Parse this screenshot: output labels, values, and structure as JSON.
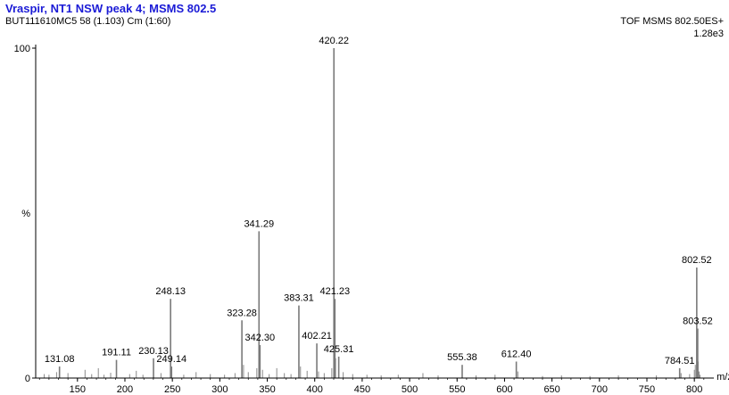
{
  "header": {
    "title": "Vraspir, NT1 NSW peak 4; MSMS 802.5",
    "subtitle": "BUT111610MC5 58 (1.103) Cm (1:60)",
    "instrument": "TOF MSMS 802.50ES+",
    "intensity": "1.28e3"
  },
  "chart_data": {
    "type": "bar",
    "xlabel": "m/z",
    "ylabel": "%",
    "xlim": [
      106,
      813
    ],
    "ylim": [
      0,
      100
    ],
    "y_ticks": [
      {
        "value": 0,
        "label": "0"
      },
      {
        "value": 100,
        "label": "100"
      }
    ],
    "x_ticks": [
      150,
      200,
      250,
      300,
      350,
      400,
      450,
      500,
      550,
      600,
      650,
      700,
      750,
      800
    ],
    "peaks": [
      {
        "mz": 131.08,
        "intensity": 3.5,
        "label": "131.08"
      },
      {
        "mz": 191.11,
        "intensity": 5.5,
        "label": "191.11"
      },
      {
        "mz": 230.13,
        "intensity": 6,
        "label": "230.13"
      },
      {
        "mz": 248.13,
        "intensity": 24,
        "label": "248.13"
      },
      {
        "mz": 249.14,
        "intensity": 3.5,
        "label": "249.14"
      },
      {
        "mz": 323.28,
        "intensity": 17.5,
        "label": "323.28"
      },
      {
        "mz": 341.29,
        "intensity": 44.5,
        "label": "341.29"
      },
      {
        "mz": 342.3,
        "intensity": 10,
        "label": "342.30"
      },
      {
        "mz": 383.31,
        "intensity": 22,
        "label": "383.31"
      },
      {
        "mz": 402.21,
        "intensity": 10.5,
        "label": "402.21"
      },
      {
        "mz": 420.22,
        "intensity": 100,
        "label": "420.22"
      },
      {
        "mz": 421.23,
        "intensity": 24,
        "label": "421.23"
      },
      {
        "mz": 425.31,
        "intensity": 6.5,
        "label": "425.31"
      },
      {
        "mz": 555.38,
        "intensity": 4,
        "label": "555.38"
      },
      {
        "mz": 612.4,
        "intensity": 5,
        "label": "612.40"
      },
      {
        "mz": 784.51,
        "intensity": 3,
        "label": "784.51"
      },
      {
        "mz": 802.52,
        "intensity": 33.5,
        "label": "802.52"
      },
      {
        "mz": 803.52,
        "intensity": 15,
        "label": "803.52"
      }
    ],
    "minor_peaks": [
      {
        "mz": 115,
        "intensity": 1.2
      },
      {
        "mz": 120,
        "intensity": 1.0
      },
      {
        "mz": 128,
        "intensity": 1.8
      },
      {
        "mz": 140,
        "intensity": 1.5
      },
      {
        "mz": 158,
        "intensity": 2.5
      },
      {
        "mz": 165,
        "intensity": 1.2
      },
      {
        "mz": 172,
        "intensity": 3.0
      },
      {
        "mz": 178,
        "intensity": 1.0
      },
      {
        "mz": 185,
        "intensity": 1.6
      },
      {
        "mz": 205,
        "intensity": 1.2
      },
      {
        "mz": 212,
        "intensity": 2.2
      },
      {
        "mz": 219,
        "intensity": 1.0
      },
      {
        "mz": 238,
        "intensity": 1.5
      },
      {
        "mz": 262,
        "intensity": 1.0
      },
      {
        "mz": 275,
        "intensity": 1.8
      },
      {
        "mz": 290,
        "intensity": 1.2
      },
      {
        "mz": 305,
        "intensity": 1.0
      },
      {
        "mz": 316,
        "intensity": 1.5
      },
      {
        "mz": 325,
        "intensity": 4.0
      },
      {
        "mz": 330,
        "intensity": 1.8
      },
      {
        "mz": 339,
        "intensity": 3.0
      },
      {
        "mz": 345,
        "intensity": 2.5
      },
      {
        "mz": 352,
        "intensity": 1.2
      },
      {
        "mz": 360,
        "intensity": 3.0
      },
      {
        "mz": 368,
        "intensity": 1.5
      },
      {
        "mz": 375,
        "intensity": 1.2
      },
      {
        "mz": 385,
        "intensity": 3.5
      },
      {
        "mz": 392,
        "intensity": 2.2
      },
      {
        "mz": 404,
        "intensity": 2.0
      },
      {
        "mz": 410,
        "intensity": 1.5
      },
      {
        "mz": 418,
        "intensity": 3.0
      },
      {
        "mz": 422,
        "intensity": 6.0
      },
      {
        "mz": 430,
        "intensity": 1.8
      },
      {
        "mz": 440,
        "intensity": 1.2
      },
      {
        "mz": 455,
        "intensity": 1.0
      },
      {
        "mz": 470,
        "intensity": 0.8
      },
      {
        "mz": 488,
        "intensity": 1.0
      },
      {
        "mz": 514,
        "intensity": 1.5
      },
      {
        "mz": 530,
        "intensity": 0.8
      },
      {
        "mz": 570,
        "intensity": 0.8
      },
      {
        "mz": 590,
        "intensity": 1.0
      },
      {
        "mz": 614,
        "intensity": 2.0
      },
      {
        "mz": 640,
        "intensity": 0.6
      },
      {
        "mz": 660,
        "intensity": 0.8
      },
      {
        "mz": 690,
        "intensity": 0.6
      },
      {
        "mz": 720,
        "intensity": 0.8
      },
      {
        "mz": 760,
        "intensity": 0.8
      },
      {
        "mz": 786,
        "intensity": 1.5
      },
      {
        "mz": 795,
        "intensity": 1.2
      },
      {
        "mz": 800,
        "intensity": 2.5
      },
      {
        "mz": 801,
        "intensity": 4.0
      },
      {
        "mz": 804,
        "intensity": 5.0
      },
      {
        "mz": 805,
        "intensity": 2.0
      },
      {
        "mz": 806,
        "intensity": 1.0
      }
    ]
  }
}
